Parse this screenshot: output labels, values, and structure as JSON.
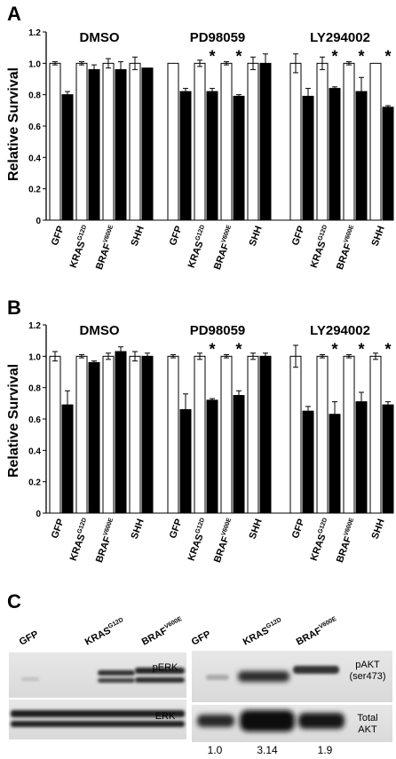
{
  "panels": [
    {
      "letter": "A",
      "ylabel": "Relative Survival",
      "yticks": [
        "0",
        "0.2",
        "0.4",
        "0.6",
        "0.8",
        "1.0",
        "1.2"
      ],
      "star": "*"
    },
    {
      "letter": "B",
      "ylabel": "Relative Survival",
      "yticks": [
        "0",
        "0.2",
        "0.4",
        "0.6",
        "0.8",
        "1.0",
        "1.2"
      ],
      "star": "*"
    }
  ],
  "chart_data": [
    {
      "type": "bar",
      "panel": "A",
      "ylabel": "Relative Survival",
      "ylim": [
        0,
        1.2
      ],
      "groups": [
        "DMSO",
        "PD98059",
        "LY294002"
      ],
      "categories": [
        {
          "name": "GFP",
          "sup": ""
        },
        {
          "name": "KRAS",
          "sup": "G12D"
        },
        {
          "name": "BRAF",
          "sup": "V600E"
        },
        {
          "name": "SHH",
          "sup": ""
        }
      ],
      "bar_colors": [
        "#ffffff",
        "#000000"
      ],
      "data": [
        [
          {
            "v": [
              1.0,
              0.8
            ],
            "e": [
              0.01,
              0.02
            ]
          },
          {
            "v": [
              1.0,
              0.96
            ],
            "e": [
              0.01,
              0.03
            ]
          },
          {
            "v": [
              1.0,
              0.96
            ],
            "e": [
              0.03,
              0.05
            ]
          },
          {
            "v": [
              1.0,
              0.97
            ],
            "e": [
              0.04,
              0.0
            ]
          }
        ],
        [
          {
            "v": [
              1.0,
              0.82
            ],
            "e": [
              0.0,
              0.02
            ]
          },
          {
            "v": [
              1.0,
              0.82
            ],
            "e": [
              0.02,
              0.02
            ]
          },
          {
            "v": [
              1.0,
              0.79
            ],
            "e": [
              0.01,
              0.01
            ]
          },
          {
            "v": [
              1.0,
              1.0
            ],
            "e": [
              0.04,
              0.06
            ]
          }
        ],
        [
          {
            "v": [
              1.0,
              0.79
            ],
            "e": [
              0.06,
              0.05
            ]
          },
          {
            "v": [
              1.0,
              0.84
            ],
            "e": [
              0.04,
              0.01
            ]
          },
          {
            "v": [
              1.0,
              0.82
            ],
            "e": [
              0.01,
              0.09
            ]
          },
          {
            "v": [
              1.0,
              0.72
            ],
            "e": [
              0.0,
              0.01
            ]
          }
        ]
      ],
      "significant": [
        [
          false,
          false,
          false,
          false
        ],
        [
          false,
          true,
          true,
          false
        ],
        [
          false,
          true,
          true,
          true
        ]
      ]
    },
    {
      "type": "bar",
      "panel": "B",
      "ylabel": "Relative Survival",
      "ylim": [
        0,
        1.2
      ],
      "groups": [
        "DMSO",
        "PD98059",
        "LY294002"
      ],
      "categories": [
        {
          "name": "GFP",
          "sup": ""
        },
        {
          "name": "KRAS",
          "sup": "G12D"
        },
        {
          "name": "BRAF",
          "sup": "V600E"
        },
        {
          "name": "SHH",
          "sup": ""
        }
      ],
      "bar_colors": [
        "#ffffff",
        "#000000"
      ],
      "data": [
        [
          {
            "v": [
              1.0,
              0.69
            ],
            "e": [
              0.03,
              0.09
            ]
          },
          {
            "v": [
              1.0,
              0.96
            ],
            "e": [
              0.01,
              0.01
            ]
          },
          {
            "v": [
              1.0,
              1.03
            ],
            "e": [
              0.02,
              0.03
            ]
          },
          {
            "v": [
              1.0,
              1.0
            ],
            "e": [
              0.03,
              0.02
            ]
          }
        ],
        [
          {
            "v": [
              1.0,
              0.66
            ],
            "e": [
              0.01,
              0.1
            ]
          },
          {
            "v": [
              1.0,
              0.72
            ],
            "e": [
              0.02,
              0.01
            ]
          },
          {
            "v": [
              1.0,
              0.75
            ],
            "e": [
              0.01,
              0.03
            ]
          },
          {
            "v": [
              1.0,
              1.0
            ],
            "e": [
              0.02,
              0.02
            ]
          }
        ],
        [
          {
            "v": [
              1.0,
              0.65
            ],
            "e": [
              0.07,
              0.03
            ]
          },
          {
            "v": [
              1.0,
              0.63
            ],
            "e": [
              0.01,
              0.08
            ]
          },
          {
            "v": [
              1.0,
              0.71
            ],
            "e": [
              0.01,
              0.06
            ]
          },
          {
            "v": [
              1.0,
              0.69
            ],
            "e": [
              0.02,
              0.02
            ]
          }
        ]
      ],
      "significant": [
        [
          false,
          false,
          false,
          false
        ],
        [
          false,
          true,
          true,
          false
        ],
        [
          false,
          true,
          true,
          true
        ]
      ]
    }
  ],
  "panelC": {
    "letter": "C",
    "left_lanes": [
      {
        "name": "GFP",
        "sup": ""
      },
      {
        "name": "KRAS",
        "sup": "G12D"
      },
      {
        "name": "BRAF",
        "sup": "V600E"
      }
    ],
    "right_lanes": [
      {
        "name": "GFP",
        "sup": ""
      },
      {
        "name": "KRAS",
        "sup": "G12D"
      },
      {
        "name": "BRAF",
        "sup": "V600E"
      }
    ],
    "labels": {
      "pERK": "pERK",
      "ERK": "ERK",
      "pAKT1": "pAKT",
      "pAKT2": "(ser473)",
      "total1": "Total",
      "total2": "AKT"
    },
    "quant": [
      "1.0",
      "3.14",
      "1.9"
    ]
  }
}
